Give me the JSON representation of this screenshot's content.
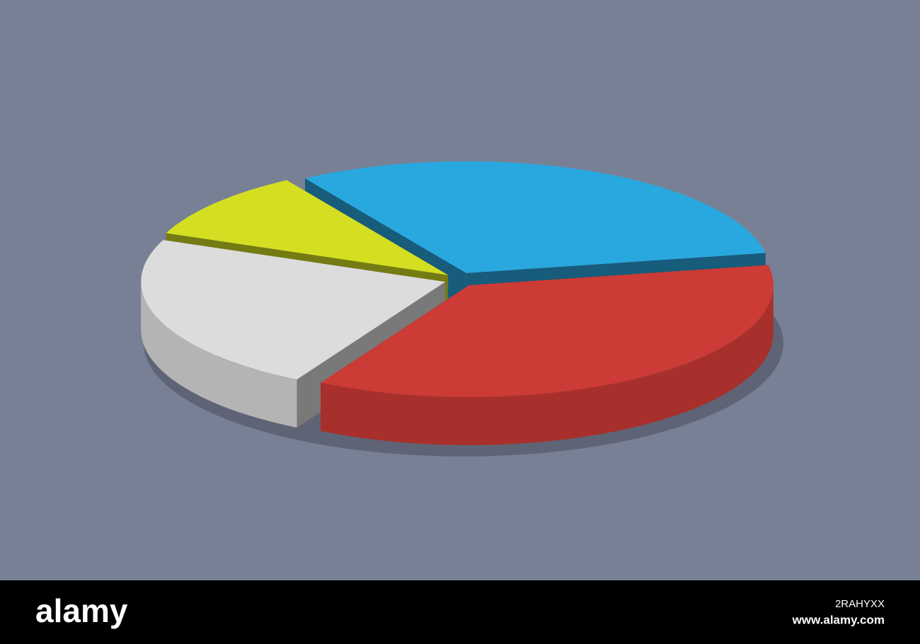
{
  "chart_data": {
    "type": "pie",
    "values": [
      31,
      36,
      23,
      10
    ],
    "colors": [
      "#29a8e0",
      "#cc3b36",
      "#dcdcdc",
      "#d4df22"
    ]
  },
  "footer": {
    "logo": "alamy",
    "image_id": "2RAHYXX",
    "url": "www.alamy.com"
  }
}
